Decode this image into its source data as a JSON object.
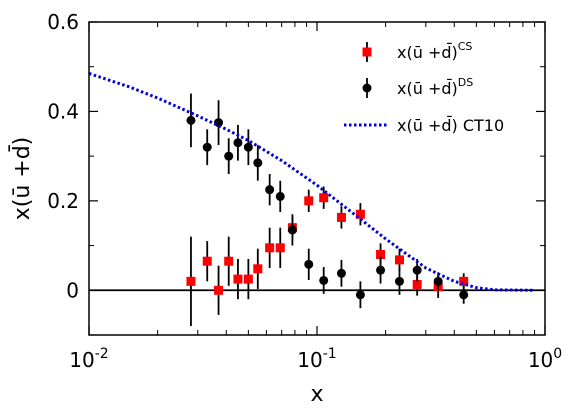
{
  "chart_data": {
    "type": "scatter",
    "xlabel": "x",
    "ylabel": "x(ū +d̄)",
    "xscale": "log",
    "xlim": [
      0.01,
      1.0
    ],
    "ylim": [
      -0.1,
      0.6
    ],
    "x_ticks": [
      0.01,
      0.1,
      1.0
    ],
    "x_tick_labels": [
      {
        "base": "10",
        "exp": "-2"
      },
      {
        "base": "10",
        "exp": "-1"
      },
      {
        "base": "10",
        "exp": "0"
      }
    ],
    "y_ticks": [
      0,
      0.2,
      0.4,
      0.6
    ],
    "y_tick_labels": [
      "0",
      "0.2",
      "0.4",
      "0.6"
    ],
    "grid": false,
    "zero_line": true,
    "legend_position": "top-right",
    "series": [
      {
        "name": "x(ū +d̄)",
        "name_sup": "CS",
        "marker": "square",
        "color": "#ff0000",
        "points": [
          {
            "x": 0.028,
            "y": 0.02,
            "err": 0.1
          },
          {
            "x": 0.033,
            "y": 0.065,
            "err": 0.045
          },
          {
            "x": 0.037,
            "y": 0.0,
            "err": 0.055
          },
          {
            "x": 0.041,
            "y": 0.065,
            "err": 0.055
          },
          {
            "x": 0.045,
            "y": 0.025,
            "err": 0.045
          },
          {
            "x": 0.05,
            "y": 0.025,
            "err": 0.045
          },
          {
            "x": 0.055,
            "y": 0.048,
            "err": 0.045
          },
          {
            "x": 0.062,
            "y": 0.095,
            "err": 0.045
          },
          {
            "x": 0.069,
            "y": 0.095,
            "err": 0.045
          },
          {
            "x": 0.078,
            "y": 0.14,
            "err": 0.025
          },
          {
            "x": 0.092,
            "y": 0.2,
            "err": 0.025
          },
          {
            "x": 0.107,
            "y": 0.207,
            "err": 0.025
          },
          {
            "x": 0.128,
            "y": 0.163,
            "err": 0.025
          },
          {
            "x": 0.155,
            "y": 0.17,
            "err": 0.025
          },
          {
            "x": 0.19,
            "y": 0.08,
            "err": 0.025
          },
          {
            "x": 0.23,
            "y": 0.068,
            "err": 0.025
          },
          {
            "x": 0.275,
            "y": 0.013,
            "err": 0.025
          },
          {
            "x": 0.34,
            "y": 0.008,
            "err": 0.025
          },
          {
            "x": 0.44,
            "y": 0.02,
            "err": 0.018
          }
        ]
      },
      {
        "name": "x(ū +d̄)",
        "name_sup": "DS",
        "marker": "circle",
        "color": "#000000",
        "points": [
          {
            "x": 0.028,
            "y": 0.38,
            "err": 0.06
          },
          {
            "x": 0.033,
            "y": 0.32,
            "err": 0.04
          },
          {
            "x": 0.037,
            "y": 0.375,
            "err": 0.05
          },
          {
            "x": 0.041,
            "y": 0.3,
            "err": 0.04
          },
          {
            "x": 0.045,
            "y": 0.33,
            "err": 0.04
          },
          {
            "x": 0.05,
            "y": 0.32,
            "err": 0.04
          },
          {
            "x": 0.055,
            "y": 0.285,
            "err": 0.04
          },
          {
            "x": 0.062,
            "y": 0.225,
            "err": 0.035
          },
          {
            "x": 0.069,
            "y": 0.21,
            "err": 0.035
          },
          {
            "x": 0.078,
            "y": 0.135,
            "err": 0.035
          },
          {
            "x": 0.092,
            "y": 0.058,
            "err": 0.035
          },
          {
            "x": 0.107,
            "y": 0.022,
            "err": 0.03
          },
          {
            "x": 0.128,
            "y": 0.038,
            "err": 0.03
          },
          {
            "x": 0.155,
            "y": -0.01,
            "err": 0.03
          },
          {
            "x": 0.19,
            "y": 0.045,
            "err": 0.03
          },
          {
            "x": 0.23,
            "y": 0.02,
            "err": 0.03
          },
          {
            "x": 0.275,
            "y": 0.045,
            "err": 0.025
          },
          {
            "x": 0.34,
            "y": 0.02,
            "err": 0.02
          },
          {
            "x": 0.44,
            "y": -0.01,
            "err": 0.02
          }
        ]
      },
      {
        "name": "x(ū +d̄) CT10",
        "name_sup": "",
        "marker": "dotted-line",
        "color": "#0000dd",
        "points": [
          {
            "x": 0.01,
            "y": 0.485
          },
          {
            "x": 0.015,
            "y": 0.455
          },
          {
            "x": 0.02,
            "y": 0.43
          },
          {
            "x": 0.03,
            "y": 0.39
          },
          {
            "x": 0.04,
            "y": 0.36
          },
          {
            "x": 0.05,
            "y": 0.335
          },
          {
            "x": 0.07,
            "y": 0.29
          },
          {
            "x": 0.1,
            "y": 0.235
          },
          {
            "x": 0.15,
            "y": 0.165
          },
          {
            "x": 0.2,
            "y": 0.115
          },
          {
            "x": 0.3,
            "y": 0.05
          },
          {
            "x": 0.4,
            "y": 0.02
          },
          {
            "x": 0.5,
            "y": 0.006
          },
          {
            "x": 0.6,
            "y": 0.001
          },
          {
            "x": 0.9,
            "y": 0.0
          }
        ]
      }
    ]
  }
}
